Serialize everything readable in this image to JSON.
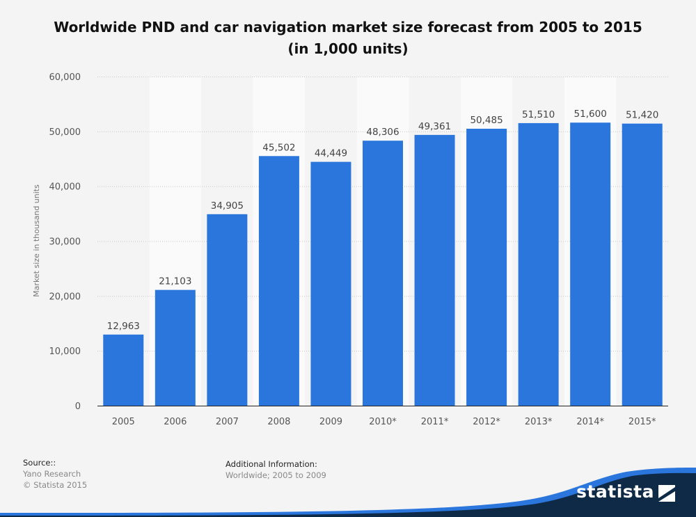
{
  "title_line1": "Worldwide PND and car navigation market size forecast from 2005 to 2015",
  "title_line2": "(in 1,000 units)",
  "chart_data": {
    "type": "bar",
    "title": "Worldwide PND and car navigation market size forecast from 2005 to 2015 (in 1,000 units)",
    "categories": [
      "2005",
      "2006",
      "2007",
      "2008",
      "2009",
      "2010*",
      "2011*",
      "2012*",
      "2013*",
      "2014*",
      "2015*"
    ],
    "values": [
      12963,
      21103,
      34905,
      45502,
      44449,
      48306,
      49361,
      50485,
      51510,
      51600,
      51420
    ],
    "value_labels": [
      "12,963",
      "21,103",
      "34,905",
      "45,502",
      "44,449",
      "48,306",
      "49,361",
      "50,485",
      "51,510",
      "51,600",
      "51,420"
    ],
    "xlabel": "",
    "ylabel": "Market size in thousand units",
    "ylim": [
      0,
      60000
    ],
    "yticks": [
      0,
      10000,
      20000,
      30000,
      40000,
      50000,
      60000
    ],
    "ytick_labels": [
      "0",
      "10,000",
      "20,000",
      "30,000",
      "40,000",
      "50,000",
      "60,000"
    ],
    "grid": true,
    "bar_color": "#2a76dd"
  },
  "footer": {
    "source_heading": "Source::",
    "source_lines": [
      "Yano Research",
      "© Statista 2015"
    ],
    "info_heading": "Additional Information:",
    "info_text": "Worldwide; 2005 to 2009"
  },
  "logo": {
    "text": "statista",
    "icon": "statista-logo-icon",
    "band_color": "#0f2a47",
    "accent_color": "#2a76dd"
  }
}
